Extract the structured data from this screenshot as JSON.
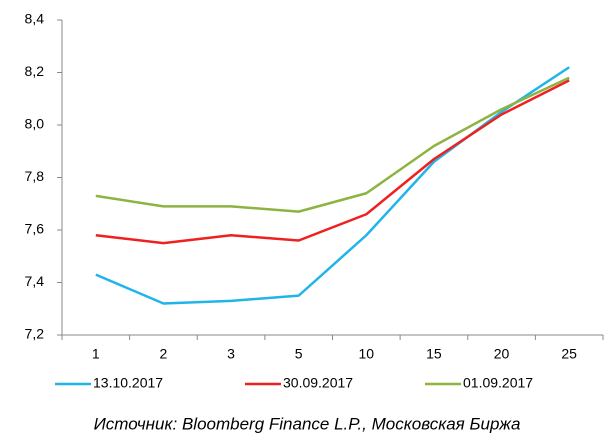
{
  "chart_data": {
    "type": "line",
    "categories": [
      "1",
      "2",
      "3",
      "5",
      "10",
      "15",
      "20",
      "25"
    ],
    "series": [
      {
        "name": "13.10.2017",
        "color": "#1fb5ea",
        "values": [
          7.43,
          7.32,
          7.33,
          7.35,
          7.58,
          7.86,
          8.05,
          8.22
        ]
      },
      {
        "name": "30.09.2017",
        "color": "#f02020",
        "values": [
          7.58,
          7.55,
          7.58,
          7.56,
          7.66,
          7.87,
          8.04,
          8.17
        ]
      },
      {
        "name": "01.09.2017",
        "color": "#8db340",
        "values": [
          7.73,
          7.69,
          7.69,
          7.67,
          7.74,
          7.92,
          8.06,
          8.18
        ]
      }
    ],
    "ylim": [
      7.2,
      8.4
    ],
    "yticks": [
      {
        "value": 7.2,
        "label": "7,2"
      },
      {
        "value": 7.4,
        "label": "7,4"
      },
      {
        "value": 7.6,
        "label": "7,6"
      },
      {
        "value": 7.8,
        "label": "7,8"
      },
      {
        "value": 8.0,
        "label": "8,0"
      },
      {
        "value": 8.2,
        "label": "8,2"
      },
      {
        "value": 8.4,
        "label": "8,4"
      }
    ],
    "grid": false,
    "legend": "bottom",
    "source": "Источник: Bloomberg Finance L.P., Московская Биржа"
  }
}
